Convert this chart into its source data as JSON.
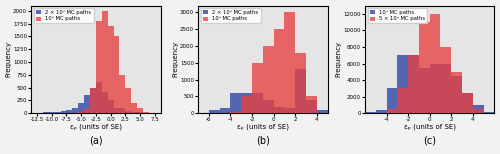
{
  "subplots": [
    {
      "label": "(a)",
      "legend": [
        "2 × 10⁵ MC paths",
        "10⁵ MC paths"
      ],
      "colors_blue": "#3b50a8",
      "colors_red": "#e84040",
      "xlim": [
        -13.5,
        8.5
      ],
      "xticks": [
        -12.5,
        -10.0,
        -7.5,
        -5.0,
        -2.5,
        0.0,
        2.5,
        5.0,
        7.5
      ],
      "xlabel": "εₚ (units of SE)",
      "ylim": [
        0,
        2100
      ],
      "yticks": [
        0,
        250,
        500,
        750,
        1000,
        1250,
        1500,
        1750,
        2000
      ],
      "ylabel": "Frequency",
      "blue_bins_left": [
        -13.5,
        -12.5,
        -11.5,
        -10.5,
        -9.5,
        -8.5,
        -7.5,
        -6.5,
        -5.5,
        -4.5,
        -3.5,
        -2.5,
        -1.5,
        -0.5,
        0.5,
        1.5,
        2.5,
        3.5,
        4.5,
        5.5,
        6.5
      ],
      "blue_heights": [
        5,
        10,
        15,
        20,
        30,
        50,
        70,
        100,
        200,
        350,
        500,
        600,
        420,
        250,
        100,
        100,
        50,
        30,
        20,
        10,
        5
      ],
      "red_bins_left": [
        -13.5,
        -12.5,
        -11.5,
        -10.5,
        -9.5,
        -8.5,
        -7.5,
        -6.5,
        -5.5,
        -4.5,
        -3.5,
        -2.5,
        -1.5,
        -0.5,
        0.5,
        1.5,
        2.5,
        3.5,
        4.5,
        5.5,
        6.5
      ],
      "red_heights": [
        0,
        0,
        0,
        0,
        0,
        0,
        0,
        10,
        30,
        80,
        500,
        1800,
        2000,
        1700,
        1500,
        750,
        500,
        200,
        100,
        30,
        0
      ]
    },
    {
      "label": "(b)",
      "legend": [
        "2 × 10⁵ MC paths",
        "10⁵ MC paths"
      ],
      "colors_blue": "#3b50a8",
      "colors_red": "#e84040",
      "xlim": [
        -7,
        5
      ],
      "xticks": [
        -6,
        -4,
        -2,
        0,
        2,
        4
      ],
      "xlabel": "εₚ (units of SE)",
      "ylim": [
        0,
        3200
      ],
      "yticks": [
        0,
        500,
        1000,
        1500,
        2000,
        2500,
        3000
      ],
      "ylabel": "Frequency",
      "blue_bins_left": [
        -7,
        -6,
        -5,
        -4,
        -3,
        -2,
        -1,
        0,
        1,
        2,
        3,
        4
      ],
      "blue_heights": [
        20,
        100,
        150,
        600,
        600,
        600,
        400,
        200,
        150,
        1300,
        400,
        100
      ],
      "red_bins_left": [
        -7,
        -6,
        -5,
        -4,
        -3,
        -2,
        -1,
        0,
        1,
        2,
        3,
        4
      ],
      "red_heights": [
        0,
        0,
        10,
        50,
        500,
        1500,
        2000,
        2500,
        3000,
        1800,
        500,
        0
      ]
    },
    {
      "label": "(c)",
      "legend": [
        "10⁵ MC paths",
        "5 × 10⁴ MC paths"
      ],
      "colors_blue": "#3b50a8",
      "colors_red": "#e84040",
      "xlim": [
        -6,
        6
      ],
      "xticks": [
        -4,
        -2,
        0,
        2,
        4
      ],
      "xlabel": "εₚ (units of SE)",
      "ylim": [
        0,
        13000
      ],
      "yticks": [
        0,
        2000,
        4000,
        6000,
        8000,
        10000,
        12000
      ],
      "ylabel": "Frequency",
      "blue_bins_left": [
        -6,
        -5,
        -4,
        -3,
        -2,
        -1,
        0,
        1,
        2,
        3,
        4,
        5
      ],
      "blue_heights": [
        100,
        400,
        3000,
        7000,
        7000,
        5500,
        6000,
        6000,
        4500,
        2500,
        1000,
        200
      ],
      "red_bins_left": [
        -6,
        -5,
        -4,
        -3,
        -2,
        -1,
        0,
        1,
        2,
        3,
        4,
        5
      ],
      "red_heights": [
        0,
        50,
        500,
        3000,
        7000,
        11000,
        12000,
        8000,
        5000,
        2500,
        500,
        50
      ]
    }
  ],
  "figure_bgcolor": "#f2f2f2",
  "axes_bgcolor": "#e5e5e5"
}
